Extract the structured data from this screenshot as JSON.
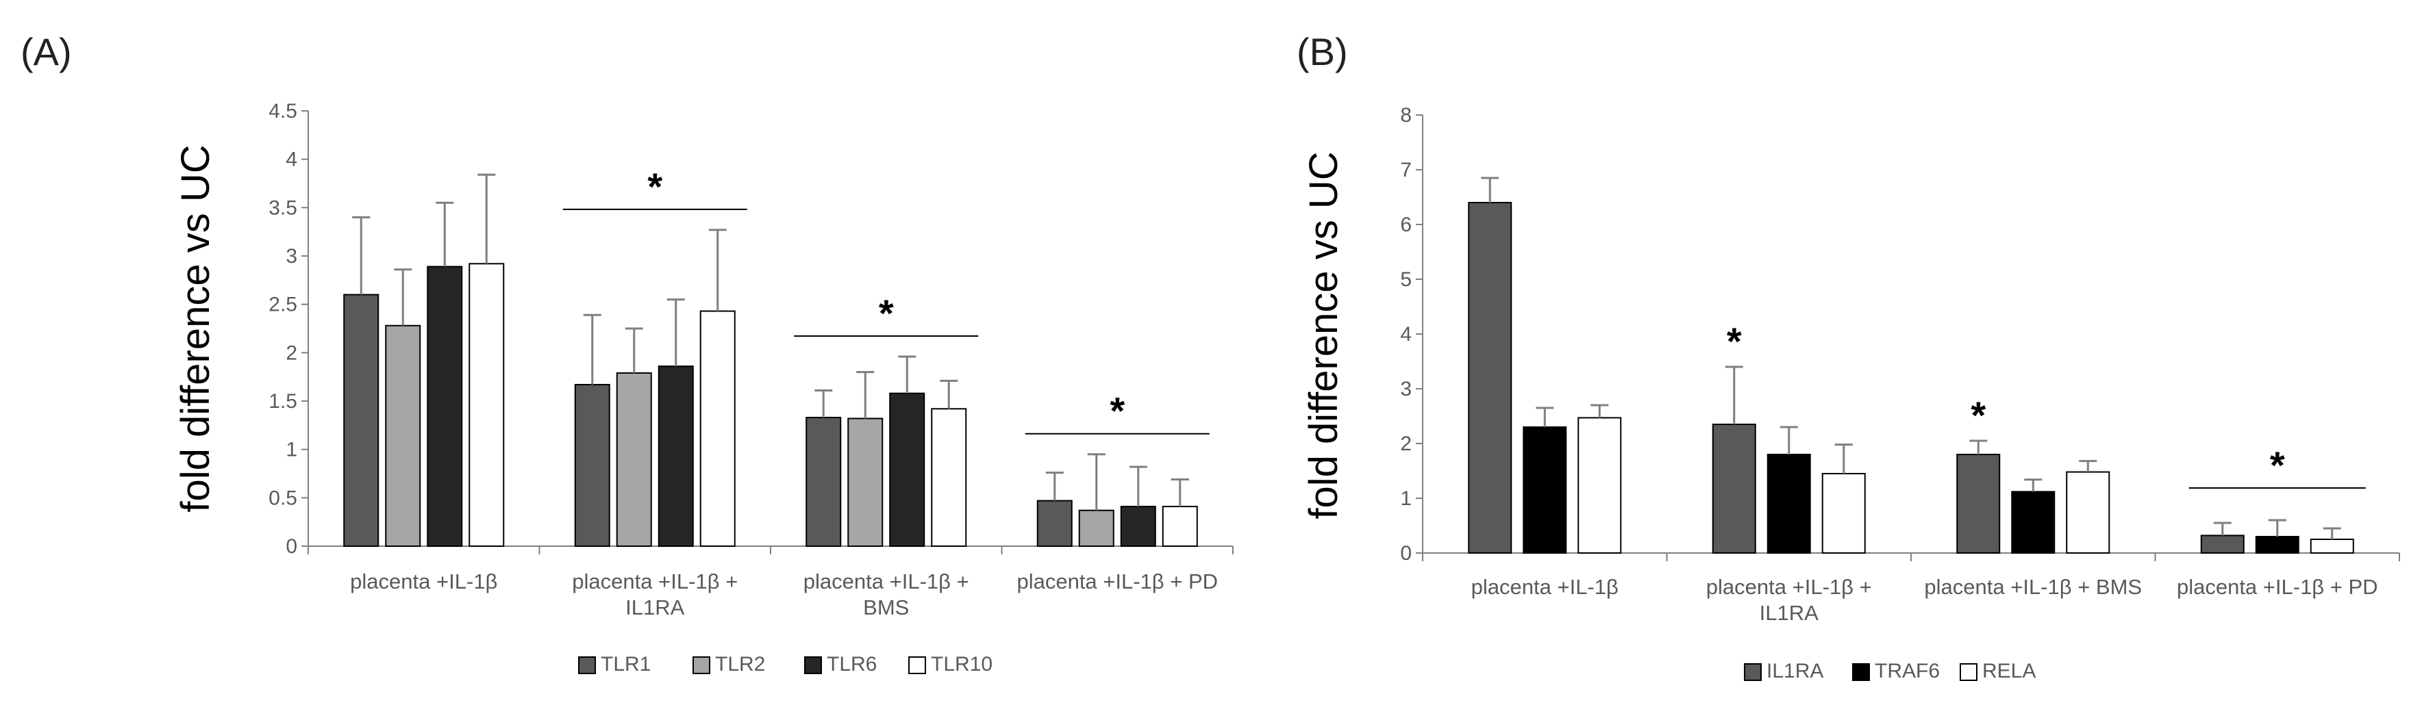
{
  "chart_data": [
    {
      "type": "bar",
      "panel": "(A)",
      "ylabel": "fold difference vs UC",
      "xlabel": "",
      "ylim": [
        0,
        4.5
      ],
      "yticks": [
        "0",
        "0.5",
        "1",
        "1.5",
        "2",
        "2.5",
        "3",
        "3.5",
        "4",
        "4.5"
      ],
      "grid": false,
      "legend_position": "bottom",
      "categories": [
        [
          "placenta +IL-1β"
        ],
        [
          "placenta +IL-1β +",
          "IL1RA"
        ],
        [
          "placenta +IL-1β +",
          "BMS"
        ],
        [
          "placenta +IL-1β + PD"
        ]
      ],
      "series": [
        {
          "name": "TLR1",
          "color": "#595959",
          "values": [
            2.6,
            1.67,
            1.33,
            0.47
          ],
          "errors": [
            0.8,
            0.72,
            0.28,
            0.29
          ]
        },
        {
          "name": "TLR2",
          "color": "#a6a6a6",
          "values": [
            2.28,
            1.79,
            1.32,
            0.37
          ],
          "errors": [
            0.58,
            0.46,
            0.48,
            0.58
          ]
        },
        {
          "name": "TLR6",
          "color": "#262626",
          "values": [
            2.89,
            1.86,
            1.58,
            0.41
          ],
          "errors": [
            0.66,
            0.69,
            0.38,
            0.41
          ]
        },
        {
          "name": "TLR10",
          "color": "#ffffff",
          "values": [
            2.92,
            2.43,
            1.42,
            0.41
          ],
          "errors": [
            0.92,
            0.84,
            0.29,
            0.28
          ]
        }
      ],
      "annotations": [
        {
          "category_index": 1,
          "text": "*",
          "bracket": true
        },
        {
          "category_index": 2,
          "text": "*",
          "bracket": true
        },
        {
          "category_index": 3,
          "text": "*",
          "bracket": true
        }
      ]
    },
    {
      "type": "bar",
      "panel": "(B)",
      "ylabel": "fold difference vs UC",
      "xlabel": "",
      "ylim": [
        0,
        8
      ],
      "yticks": [
        "0",
        "1",
        "2",
        "3",
        "4",
        "5",
        "6",
        "7",
        "8"
      ],
      "grid": false,
      "legend_position": "bottom",
      "categories": [
        [
          "placenta +IL-1β"
        ],
        [
          "placenta +IL-1β +",
          "IL1RA"
        ],
        [
          "placenta +IL-1β + BMS"
        ],
        [
          "placenta +IL-1β + PD"
        ]
      ],
      "series": [
        {
          "name": "IL1RA",
          "color": "#595959",
          "values": [
            6.4,
            2.35,
            1.8,
            0.32
          ],
          "errors": [
            0.45,
            1.05,
            0.25,
            0.23
          ]
        },
        {
          "name": "TRAF6",
          "color": "#000000",
          "values": [
            2.3,
            1.8,
            1.12,
            0.3
          ],
          "errors": [
            0.35,
            0.5,
            0.22,
            0.3
          ]
        },
        {
          "name": "RELA",
          "color": "#ffffff",
          "values": [
            2.47,
            1.45,
            1.48,
            0.25
          ],
          "errors": [
            0.23,
            0.53,
            0.2,
            0.2
          ]
        }
      ],
      "annotations": [
        {
          "category_index": 1,
          "series_index": 0,
          "text": "*",
          "bracket": false
        },
        {
          "category_index": 2,
          "series_index": 0,
          "text": "*",
          "bracket": false
        },
        {
          "category_index": 3,
          "text": "*",
          "bracket": true
        }
      ]
    }
  ]
}
